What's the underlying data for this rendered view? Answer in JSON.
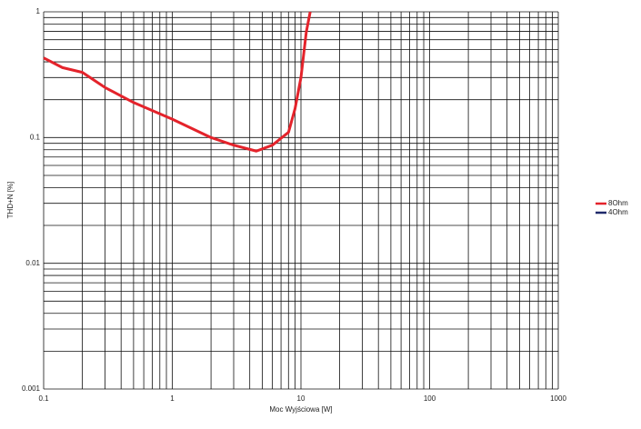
{
  "chart_data": {
    "type": "line",
    "xlabel": "Moc Wyjściowa [W]",
    "ylabel": "THD+N [%]",
    "x": [
      0.1,
      0.14,
      0.2,
      0.3,
      0.5,
      1,
      2,
      3,
      4.5,
      6,
      8,
      9,
      10,
      11,
      11.8
    ],
    "series": [
      {
        "name": "8Ohm",
        "color": "#e4232b",
        "values": [
          0.43,
          0.36,
          0.33,
          0.25,
          0.19,
          0.14,
          0.1,
          0.087,
          0.078,
          0.087,
          0.11,
          0.17,
          0.3,
          0.69,
          1.0
        ]
      },
      {
        "name": "4Ohm",
        "color": "#1f2a6b",
        "values": [
          null,
          null,
          null,
          null,
          null,
          null,
          null,
          null,
          null,
          null,
          null,
          null,
          null,
          null,
          null
        ]
      }
    ],
    "xlim": [
      0.1,
      1000
    ],
    "ylim": [
      0.001,
      1
    ],
    "xticks": [
      0.1,
      1,
      10,
      100,
      1000
    ],
    "yticks": [
      0.001,
      0.01,
      0.1,
      1
    ],
    "xlog": true,
    "ylog": true,
    "grid": true,
    "minor_grid": true,
    "legend": "right"
  }
}
